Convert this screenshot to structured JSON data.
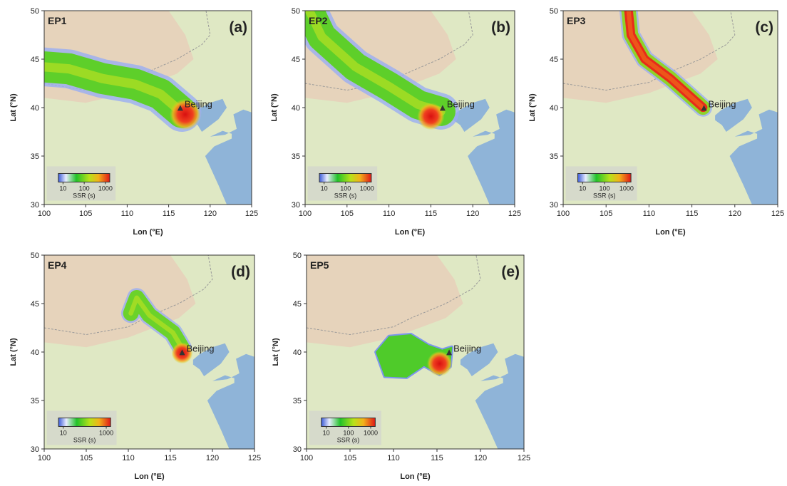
{
  "axes": {
    "x_label": "Lon (°E)",
    "y_label": "Lat (°N)",
    "xlim": [
      100,
      125
    ],
    "ylim": [
      30,
      50
    ],
    "xticks": [
      100,
      105,
      110,
      115,
      120,
      125
    ],
    "yticks": [
      30,
      35,
      40,
      45,
      50
    ]
  },
  "colorbar": {
    "label": "SSR (s)",
    "lim": [
      6,
      1600
    ],
    "log": true
  },
  "site": "Beijing",
  "panels": [
    {
      "name": "EP1",
      "letter": "(a)",
      "colorbar_ticks": [
        10,
        100,
        1000
      ]
    },
    {
      "name": "EP2",
      "letter": "(b)",
      "colorbar_ticks": [
        10,
        100,
        1000
      ]
    },
    {
      "name": "EP3",
      "letter": "(c)",
      "colorbar_ticks": [
        10,
        100,
        1000
      ]
    },
    {
      "name": "EP4",
      "letter": "(d)",
      "colorbar_ticks": [
        10,
        1000
      ]
    },
    {
      "name": "EP5",
      "letter": "(e)",
      "colorbar_ticks": [
        10,
        100,
        1000
      ]
    }
  ]
}
